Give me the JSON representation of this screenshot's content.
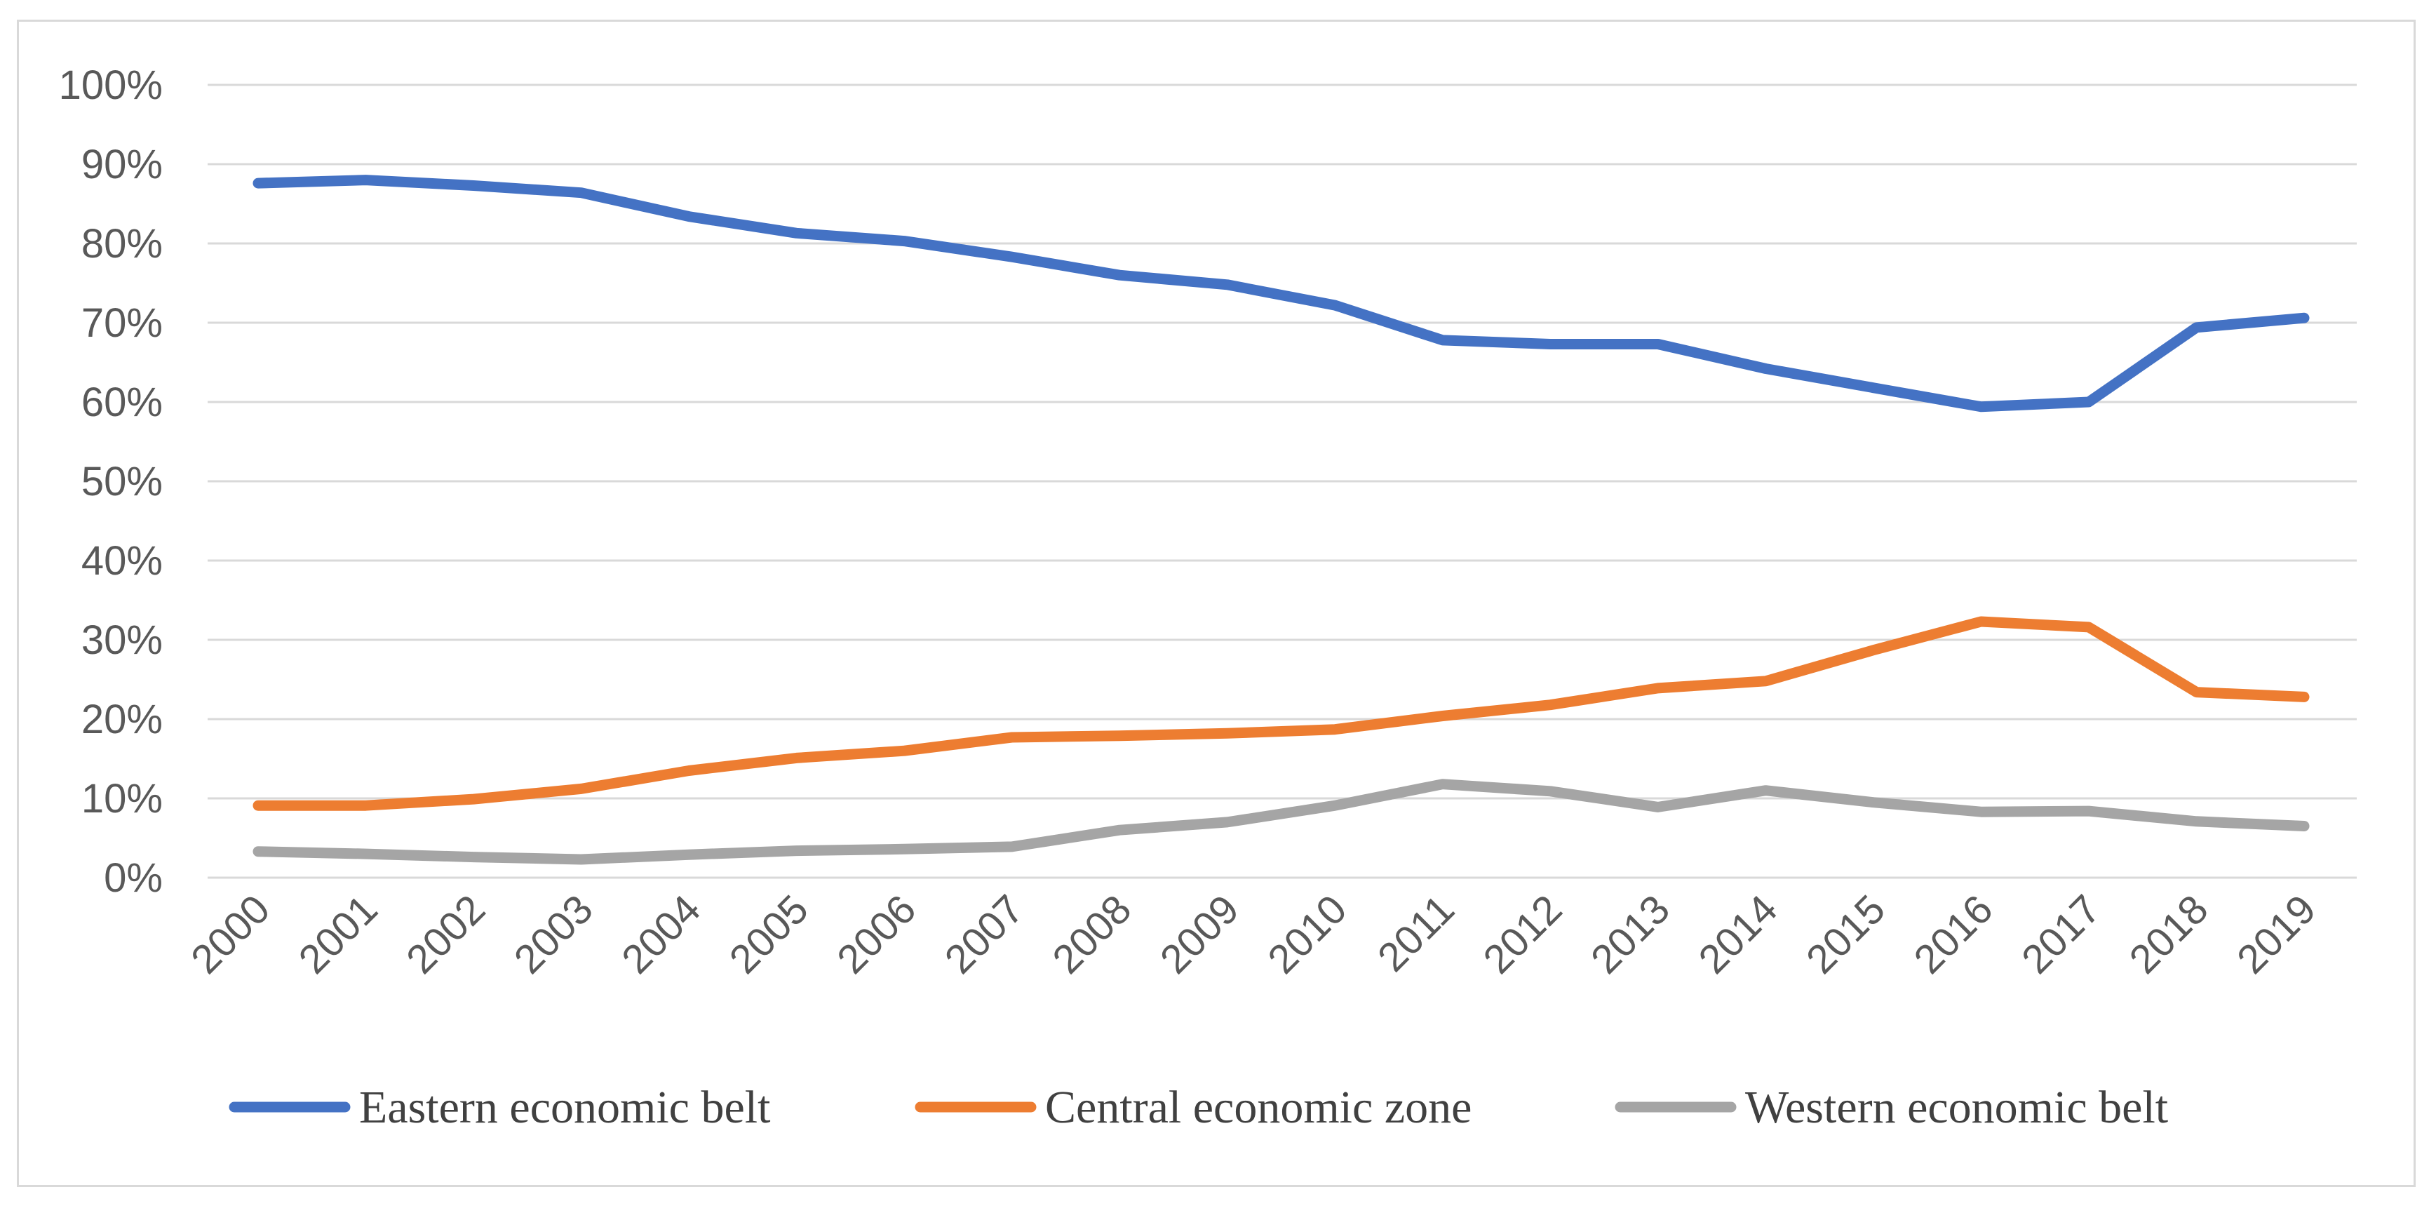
{
  "chart_data": {
    "type": "line",
    "title": "",
    "xlabel": "",
    "ylabel": "",
    "grid": true,
    "legend_position": "bottom",
    "ylim": [
      0,
      100
    ],
    "y_ticks": [
      "0%",
      "10%",
      "20%",
      "30%",
      "40%",
      "50%",
      "60%",
      "70%",
      "80%",
      "90%",
      "100%"
    ],
    "categories": [
      "2000",
      "2001",
      "2002",
      "2003",
      "2004",
      "2005",
      "2006",
      "2007",
      "2008",
      "2009",
      "2010",
      "2011",
      "2012",
      "2013",
      "2014",
      "2015",
      "2016",
      "2017",
      "2018",
      "2019"
    ],
    "series": [
      {
        "name": "Eastern economic belt",
        "color": "#4472c4",
        "values": [
          87.6,
          88.0,
          87.3,
          86.4,
          83.4,
          81.3,
          80.3,
          78.3,
          76.0,
          74.8,
          72.2,
          67.8,
          67.3,
          67.3,
          64.2,
          61.8,
          59.4,
          60.0,
          69.4,
          70.6
        ]
      },
      {
        "name": "Central economic zone",
        "color": "#ed7d31",
        "values": [
          9.1,
          9.1,
          9.9,
          11.2,
          13.5,
          15.1,
          16.0,
          17.7,
          17.9,
          18.2,
          18.7,
          20.4,
          21.8,
          23.9,
          24.8,
          28.7,
          32.3,
          31.6,
          23.4,
          22.8
        ]
      },
      {
        "name": "Western economic belt",
        "color": "#a5a5a5",
        "values": [
          3.3,
          3.0,
          2.6,
          2.3,
          2.9,
          3.4,
          3.6,
          3.9,
          6.0,
          7.0,
          9.1,
          11.8,
          10.9,
          8.9,
          11.0,
          9.5,
          8.3,
          8.4,
          7.1,
          6.5
        ]
      }
    ]
  }
}
